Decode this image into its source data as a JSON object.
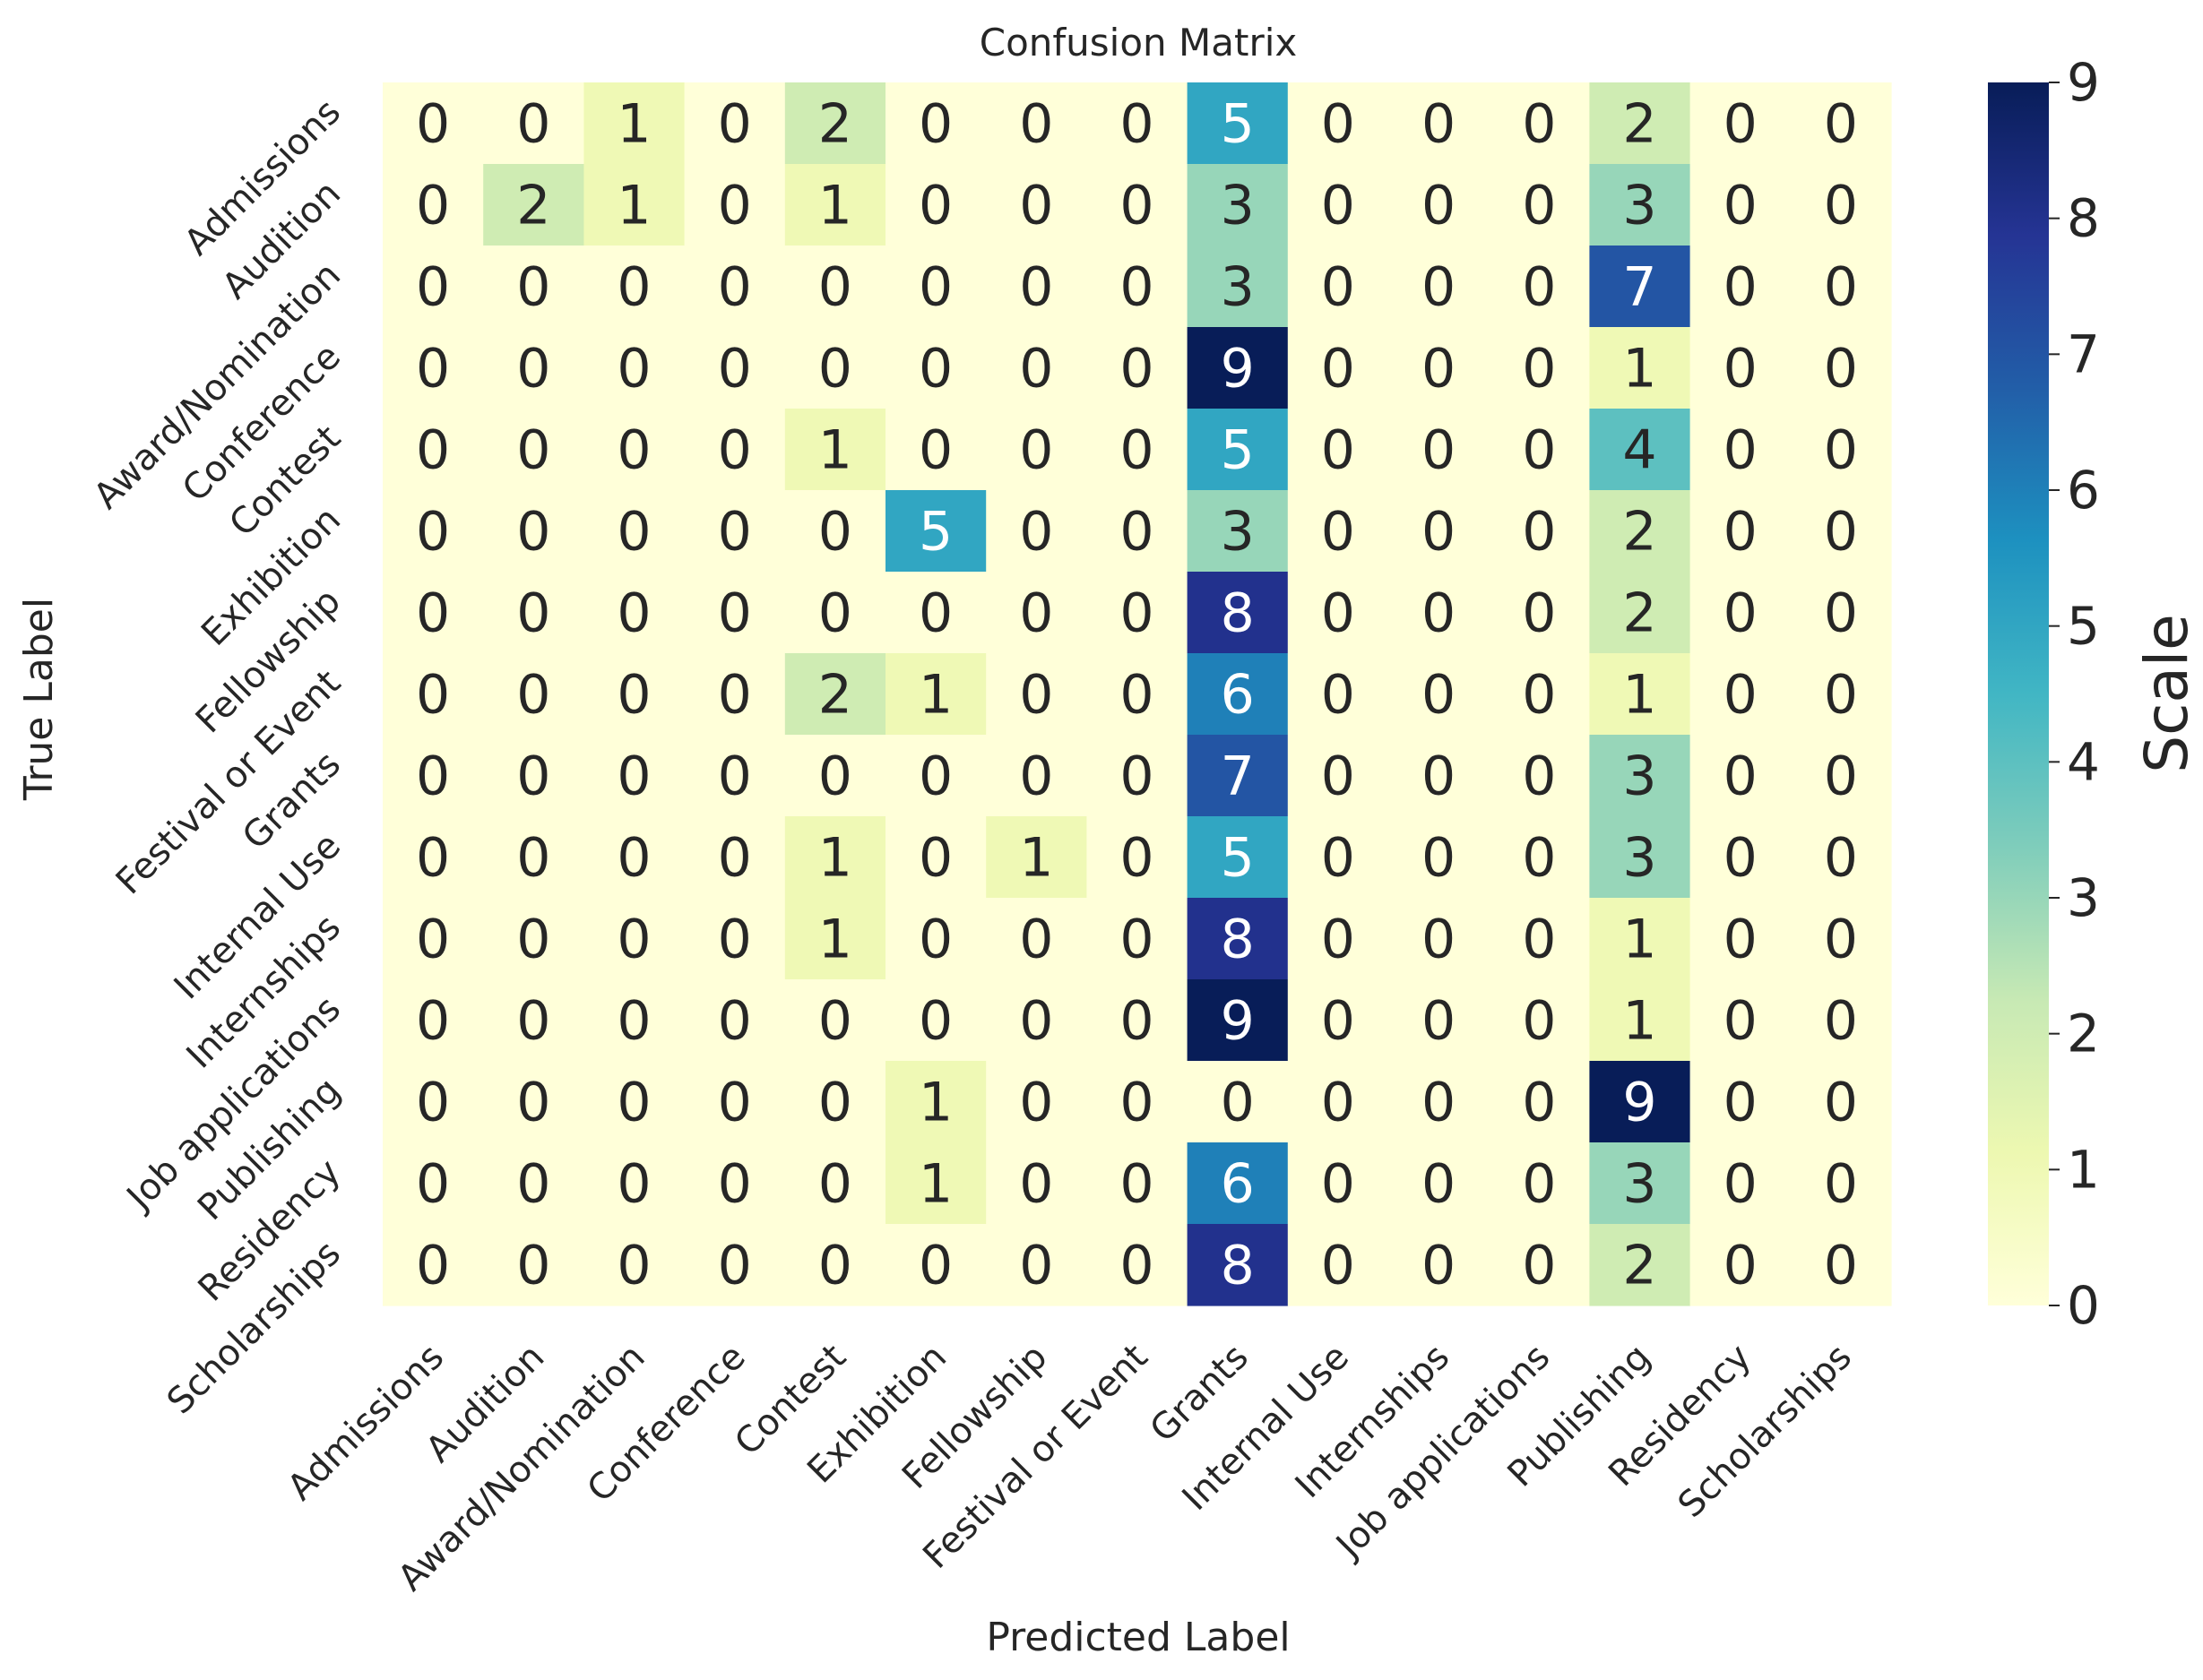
{
  "chart_data": {
    "type": "heatmap",
    "title": "Confusion Matrix",
    "xlabel": "Predicted Label",
    "ylabel": "True Label",
    "colorbar_label": "Scale",
    "colormap": "YlGnBu",
    "vmin": 0,
    "vmax": 9,
    "colorbar_ticks": [
      "0",
      "1",
      "2",
      "3",
      "4",
      "5",
      "6",
      "7",
      "8",
      "9"
    ],
    "x_categories": [
      "Admissions",
      "Audition",
      "Award/Nomination",
      "Conference",
      "Contest",
      "Exhibition",
      "Fellowship",
      "Festival or Event",
      "Grants",
      "Internal Use",
      "Internships",
      "Job applications",
      "Publishing",
      "Residency",
      "Scholarships"
    ],
    "y_categories": [
      "Admissions",
      "Audition",
      "Award/Nomination",
      "Conference",
      "Contest",
      "Exhibition",
      "Fellowship",
      "Festival or Event",
      "Grants",
      "Internal Use",
      "Internships",
      "Job applications",
      "Publishing",
      "Residency",
      "Scholarships"
    ],
    "values": [
      [
        0,
        0,
        1,
        0,
        2,
        0,
        0,
        0,
        5,
        0,
        0,
        0,
        2,
        0,
        0
      ],
      [
        0,
        2,
        1,
        0,
        1,
        0,
        0,
        0,
        3,
        0,
        0,
        0,
        3,
        0,
        0
      ],
      [
        0,
        0,
        0,
        0,
        0,
        0,
        0,
        0,
        3,
        0,
        0,
        0,
        7,
        0,
        0
      ],
      [
        0,
        0,
        0,
        0,
        0,
        0,
        0,
        0,
        9,
        0,
        0,
        0,
        1,
        0,
        0
      ],
      [
        0,
        0,
        0,
        0,
        1,
        0,
        0,
        0,
        5,
        0,
        0,
        0,
        4,
        0,
        0
      ],
      [
        0,
        0,
        0,
        0,
        0,
        5,
        0,
        0,
        3,
        0,
        0,
        0,
        2,
        0,
        0
      ],
      [
        0,
        0,
        0,
        0,
        0,
        0,
        0,
        0,
        8,
        0,
        0,
        0,
        2,
        0,
        0
      ],
      [
        0,
        0,
        0,
        0,
        2,
        1,
        0,
        0,
        6,
        0,
        0,
        0,
        1,
        0,
        0
      ],
      [
        0,
        0,
        0,
        0,
        0,
        0,
        0,
        0,
        7,
        0,
        0,
        0,
        3,
        0,
        0
      ],
      [
        0,
        0,
        0,
        0,
        1,
        0,
        1,
        0,
        5,
        0,
        0,
        0,
        3,
        0,
        0
      ],
      [
        0,
        0,
        0,
        0,
        1,
        0,
        0,
        0,
        8,
        0,
        0,
        0,
        1,
        0,
        0
      ],
      [
        0,
        0,
        0,
        0,
        0,
        0,
        0,
        0,
        9,
        0,
        0,
        0,
        1,
        0,
        0
      ],
      [
        0,
        0,
        0,
        0,
        0,
        1,
        0,
        0,
        0,
        0,
        0,
        0,
        9,
        0,
        0
      ],
      [
        0,
        0,
        0,
        0,
        0,
        1,
        0,
        0,
        6,
        0,
        0,
        0,
        3,
        0,
        0
      ],
      [
        0,
        0,
        0,
        0,
        0,
        0,
        0,
        0,
        8,
        0,
        0,
        0,
        2,
        0,
        0
      ]
    ],
    "grid": false,
    "colors": {
      "0": "#ffffd9",
      "1": "#edf8b1",
      "2": "#c7e9b4",
      "3": "#7fcdbb",
      "4": "#41b6c4",
      "5": "#1d91c0",
      "6": "#225ea8",
      "7": "#253494",
      "8": "#081d58"
    }
  }
}
